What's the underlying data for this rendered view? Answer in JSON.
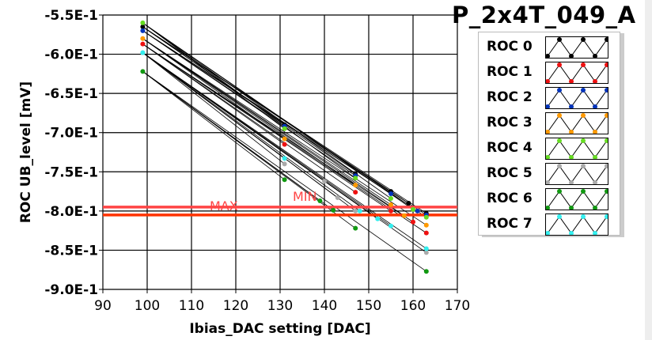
{
  "title": "P_2x4T_049_A",
  "chart_data": {
    "type": "line",
    "xlabel": "Ibias_DAC setting [DAC]",
    "ylabel": "ROC UB_level [mV]",
    "xlim": [
      90,
      170
    ],
    "ylim": [
      -0.9,
      -0.55
    ],
    "xticks": [
      "90",
      "100",
      "110",
      "120",
      "130",
      "140",
      "150",
      "160",
      "170"
    ],
    "xtick_values": [
      90,
      100,
      110,
      120,
      130,
      140,
      150,
      160,
      170
    ],
    "yticks": [
      "-5.5E-1",
      "-6.0E-1",
      "-6.5E-1",
      "-7.0E-1",
      "-7.5E-1",
      "-8.0E-1",
      "-8.5E-1",
      "-9.0E-1"
    ],
    "ytick_values": [
      -0.55,
      -0.6,
      -0.65,
      -0.7,
      -0.75,
      -0.8,
      -0.85,
      -0.9
    ],
    "grid": true,
    "legend_position": "right",
    "series": [
      {
        "name": "ROC 0",
        "color": "#000000",
        "x": [
          99,
          131,
          147,
          155,
          159,
          163
        ],
        "y": [
          -0.565,
          -0.69,
          -0.753,
          -0.775,
          -0.79,
          -0.803
        ]
      },
      {
        "name": "ROC 1",
        "color": "#ee1111",
        "x": [
          99,
          131,
          147,
          155,
          160,
          163
        ],
        "y": [
          -0.587,
          -0.715,
          -0.776,
          -0.8,
          -0.814,
          -0.828
        ]
      },
      {
        "name": "ROC 2",
        "color": "#0033bb",
        "x": [
          99,
          131,
          147,
          155,
          161,
          163
        ],
        "y": [
          -0.57,
          -0.692,
          -0.755,
          -0.778,
          -0.8,
          -0.805
        ]
      },
      {
        "name": "ROC 3",
        "color": "#ff9900",
        "x": [
          99,
          131,
          147,
          155,
          158,
          163
        ],
        "y": [
          -0.58,
          -0.708,
          -0.767,
          -0.792,
          -0.806,
          -0.818
        ]
      },
      {
        "name": "ROC 4",
        "color": "#66dd22",
        "x": [
          99,
          131,
          147,
          155,
          160,
          163
        ],
        "y": [
          -0.56,
          -0.695,
          -0.758,
          -0.784,
          -0.798,
          -0.808
        ]
      },
      {
        "name": "ROC 5",
        "color": "#aaaaaa",
        "x": [
          99,
          131,
          140,
          143,
          147,
          163
        ],
        "y": [
          -0.598,
          -0.74,
          -0.762,
          -0.783,
          -0.8,
          -0.853
        ]
      },
      {
        "name": "ROC 6",
        "color": "#119911",
        "x": [
          99,
          131,
          139,
          142,
          147,
          163
        ],
        "y": [
          -0.622,
          -0.76,
          -0.787,
          -0.799,
          -0.822,
          -0.877
        ]
      },
      {
        "name": "ROC 7",
        "color": "#33eeee",
        "x": [
          99,
          131,
          148,
          152,
          155,
          163
        ],
        "y": [
          -0.598,
          -0.733,
          -0.8,
          -0.81,
          -0.819,
          -0.848
        ]
      }
    ],
    "limits": [
      {
        "label": "MAX",
        "value": -0.795,
        "color": "#ff4444"
      },
      {
        "label": "MIN",
        "value": -0.805,
        "color": "#ff3300"
      }
    ]
  }
}
